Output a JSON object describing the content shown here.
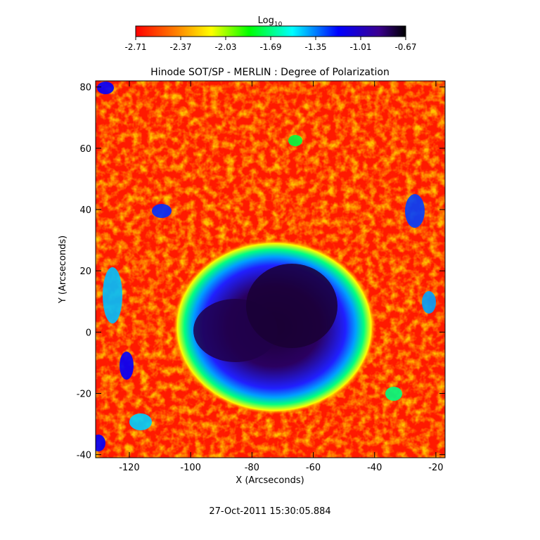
{
  "figure": {
    "title": "Hinode SOT/SP - MERLIN : Degree of Polarization",
    "timestamp": "27-Oct-2011 15:30:05.884"
  },
  "colorbar": {
    "label_main": "Log",
    "label_sub": "10",
    "ticks": [
      "-2.71",
      "-2.37",
      "-2.03",
      "-1.69",
      "-1.35",
      "-1.01",
      "-0.67"
    ],
    "colors": [
      "#ff0000",
      "#ff8000",
      "#ffff00",
      "#00ff00",
      "#00ffff",
      "#0000ff",
      "#3a0090",
      "#000000"
    ]
  },
  "axes": {
    "xlabel": "X (Arcseconds)",
    "ylabel": "Y (Arcseconds)",
    "xticks": [
      "-120",
      "-100",
      "-80",
      "-60",
      "-40",
      "-20"
    ],
    "yticks": [
      "-40",
      "-20",
      "0",
      "20",
      "40",
      "60",
      "80"
    ]
  },
  "image": {
    "description_colors": {
      "background": "#ff1a00",
      "sunspot_center": "#1a0030",
      "penumbra": "#2020ff"
    }
  }
}
